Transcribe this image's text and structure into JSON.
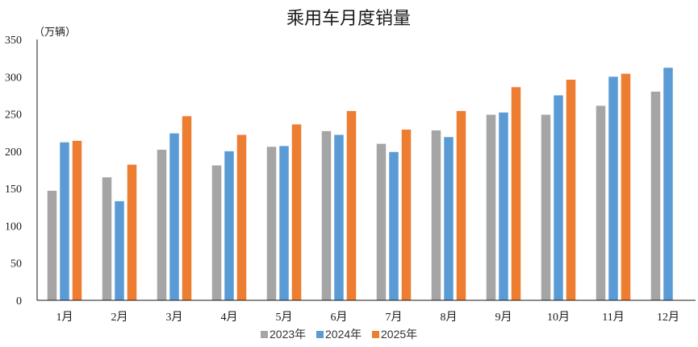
{
  "chart_data": {
    "type": "bar",
    "title": "乘用车月度销量",
    "ylabel": "（万辆）",
    "xlabel": "",
    "ylim": [
      0,
      350
    ],
    "yticks": [
      0,
      50,
      100,
      150,
      200,
      250,
      300,
      350
    ],
    "grid": false,
    "legend_position": "bottom",
    "categories": [
      "1月",
      "2月",
      "3月",
      "4月",
      "5月",
      "6月",
      "7月",
      "8月",
      "9月",
      "10月",
      "11月",
      "12月"
    ],
    "series": [
      {
        "name": "2023年",
        "color": "#a5a5a5",
        "values": [
          147,
          165,
          202,
          181,
          206,
          227,
          210,
          228,
          249,
          249,
          261,
          280
        ]
      },
      {
        "name": "2024年",
        "color": "#5b9bd5",
        "values": [
          212,
          133,
          224,
          200,
          207,
          222,
          199,
          219,
          252,
          275,
          300,
          312
        ]
      },
      {
        "name": "2025年",
        "color": "#ed7d31",
        "values": [
          214,
          182,
          247,
          222,
          236,
          254,
          229,
          254,
          286,
          296,
          304,
          null
        ]
      }
    ]
  }
}
